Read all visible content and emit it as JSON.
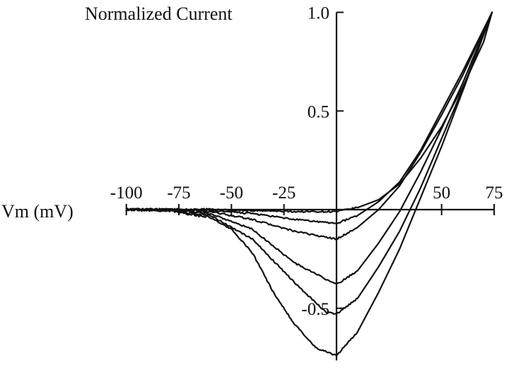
{
  "chart_data": {
    "type": "line",
    "ylabel": "Normalized Current",
    "xlabel": "Vm (mV)",
    "xlim": [
      -100,
      75
    ],
    "ylim": [
      -0.75,
      1.0
    ],
    "x_ticks": [
      -100,
      -75,
      -50,
      -25,
      50,
      75
    ],
    "x_tick_labels": [
      "-100",
      "-75",
      "-50",
      "-25",
      "50",
      "75"
    ],
    "y_ticks": [
      1.0,
      0.5,
      -0.5
    ],
    "y_tick_labels": [
      "1.0",
      "0.5",
      "-0.5"
    ],
    "grid": false,
    "legend": "none",
    "series": [
      {
        "values": [
          [
            -100,
            0
          ],
          [
            -80,
            0
          ],
          [
            -60,
            0
          ],
          [
            -40,
            -0.005
          ],
          [
            -20,
            -0.01
          ],
          [
            0,
            -0.01
          ],
          [
            10,
            0.01
          ],
          [
            20,
            0.05
          ],
          [
            30,
            0.13
          ],
          [
            40,
            0.26
          ],
          [
            50,
            0.42
          ],
          [
            60,
            0.62
          ],
          [
            70,
            0.85
          ],
          [
            74,
            1.0
          ]
        ]
      },
      {
        "values": [
          [
            -100,
            0
          ],
          [
            -80,
            0
          ],
          [
            -60,
            -0.005
          ],
          [
            -40,
            -0.02
          ],
          [
            -20,
            -0.05
          ],
          [
            0,
            -0.07
          ],
          [
            10,
            -0.03
          ],
          [
            20,
            0.04
          ],
          [
            30,
            0.14
          ],
          [
            40,
            0.3
          ],
          [
            50,
            0.5
          ],
          [
            60,
            0.7
          ],
          [
            74,
            1.0
          ]
        ]
      },
      {
        "values": [
          [
            -100,
            0
          ],
          [
            -80,
            0
          ],
          [
            -60,
            -0.01
          ],
          [
            -40,
            -0.05
          ],
          [
            -20,
            -0.11
          ],
          [
            0,
            -0.15
          ],
          [
            10,
            -0.09
          ],
          [
            20,
            0.0
          ],
          [
            30,
            0.12
          ],
          [
            40,
            0.29
          ],
          [
            50,
            0.48
          ],
          [
            60,
            0.68
          ],
          [
            74,
            1.0
          ]
        ]
      },
      {
        "values": [
          [
            -100,
            0
          ],
          [
            -80,
            0
          ],
          [
            -60,
            -0.02
          ],
          [
            -40,
            -0.1
          ],
          [
            -20,
            -0.27
          ],
          [
            0,
            -0.38
          ],
          [
            10,
            -0.31
          ],
          [
            20,
            -0.17
          ],
          [
            30,
            -0.01
          ],
          [
            40,
            0.19
          ],
          [
            50,
            0.41
          ],
          [
            60,
            0.64
          ],
          [
            74,
            1.0
          ]
        ]
      },
      {
        "values": [
          [
            -100,
            0
          ],
          [
            -80,
            -0.005
          ],
          [
            -60,
            -0.03
          ],
          [
            -40,
            -0.15
          ],
          [
            -20,
            -0.37
          ],
          [
            -5,
            -0.52
          ],
          [
            0,
            -0.53
          ],
          [
            10,
            -0.45
          ],
          [
            20,
            -0.29
          ],
          [
            30,
            -0.11
          ],
          [
            40,
            0.11
          ],
          [
            50,
            0.36
          ],
          [
            60,
            0.61
          ],
          [
            74,
            1.0
          ]
        ]
      },
      {
        "values": [
          [
            -100,
            0
          ],
          [
            -80,
            -0.005
          ],
          [
            -60,
            -0.04
          ],
          [
            -50,
            -0.1
          ],
          [
            -40,
            -0.22
          ],
          [
            -30,
            -0.42
          ],
          [
            -20,
            -0.58
          ],
          [
            -10,
            -0.7
          ],
          [
            0,
            -0.74
          ],
          [
            10,
            -0.62
          ],
          [
            20,
            -0.42
          ],
          [
            30,
            -0.2
          ],
          [
            40,
            0.06
          ],
          [
            50,
            0.32
          ],
          [
            60,
            0.6
          ],
          [
            74,
            1.0
          ]
        ]
      }
    ]
  }
}
